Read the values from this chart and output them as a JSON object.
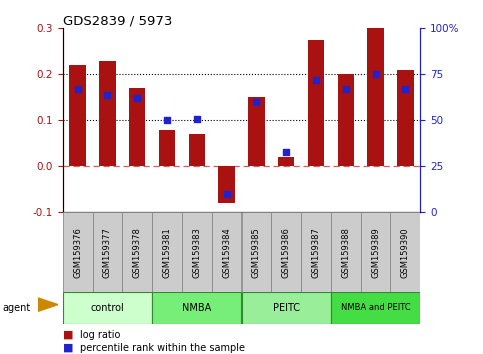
{
  "title": "GDS2839 / 5973",
  "samples": [
    "GSM159376",
    "GSM159377",
    "GSM159378",
    "GSM159381",
    "GSM159383",
    "GSM159384",
    "GSM159385",
    "GSM159386",
    "GSM159387",
    "GSM159388",
    "GSM159389",
    "GSM159390"
  ],
  "log_ratio": [
    0.22,
    0.23,
    0.17,
    0.08,
    0.07,
    -0.08,
    0.15,
    0.02,
    0.275,
    0.2,
    0.3,
    0.21
  ],
  "percentile": [
    67,
    64,
    62,
    50,
    51,
    10,
    60,
    33,
    72,
    67,
    75,
    67
  ],
  "bar_color": "#aa1111",
  "dot_color": "#2222cc",
  "ylim_left": [
    -0.1,
    0.3
  ],
  "ylim_right": [
    0,
    100
  ],
  "yticks_left": [
    -0.1,
    0.0,
    0.1,
    0.2,
    0.3
  ],
  "yticks_right": [
    0,
    25,
    50,
    75,
    100
  ],
  "ytick_labels_right": [
    "0",
    "25",
    "50",
    "75",
    "100%"
  ],
  "hlines_dotted": [
    0.1,
    0.2
  ],
  "hline_dashed_color": "#cc3333",
  "groups": [
    {
      "label": "control",
      "start": 0,
      "end": 3,
      "color": "#ccffcc"
    },
    {
      "label": "NMBA",
      "start": 3,
      "end": 6,
      "color": "#77ee77"
    },
    {
      "label": "PEITC",
      "start": 6,
      "end": 9,
      "color": "#99ee99"
    },
    {
      "label": "NMBA and PEITC",
      "start": 9,
      "end": 12,
      "color": "#44dd44"
    }
  ],
  "agent_label": "agent",
  "legend_bar_label": "log ratio",
  "legend_dot_label": "percentile rank within the sample",
  "bar_width": 0.55
}
